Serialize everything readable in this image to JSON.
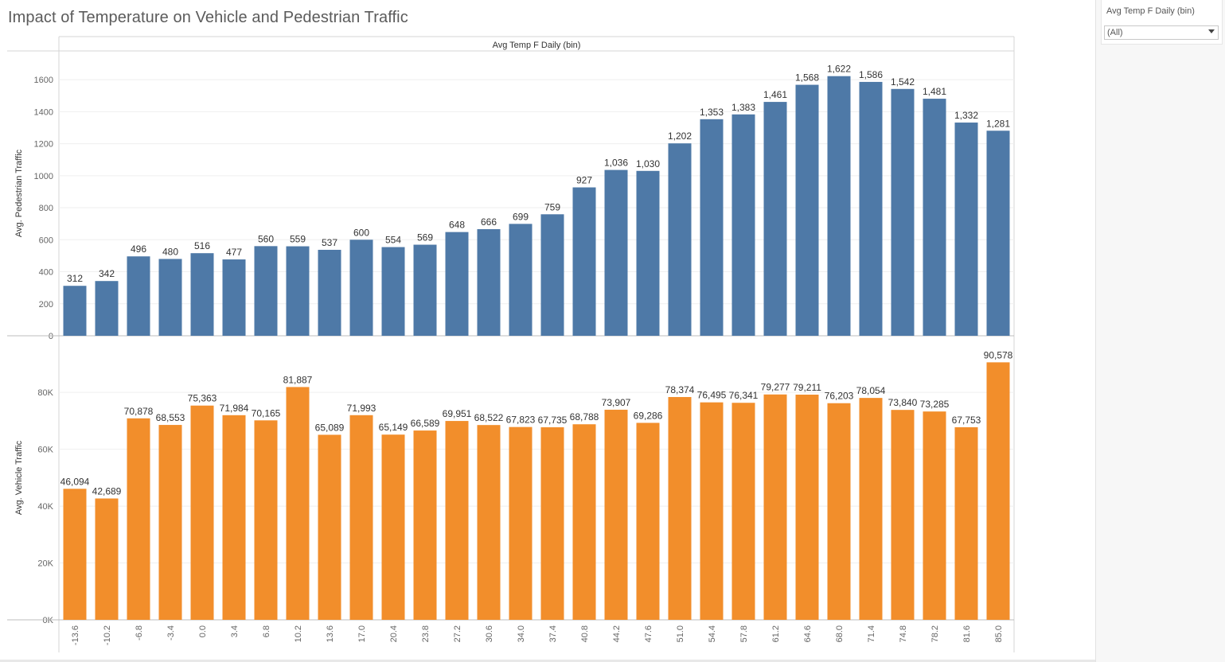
{
  "title": "Impact of Temperature on Vehicle and Pedestrian Traffic",
  "filter": {
    "title": "Avg Temp F Daily (bin)",
    "selected": "(All)",
    "icon": "chevron-down-icon"
  },
  "chart_data": {
    "type": "bar",
    "header": "Avg Temp F Daily (bin)",
    "categories": [
      "-13.6",
      "-10.2",
      "-6.8",
      "-3.4",
      "0.0",
      "3.4",
      "6.8",
      "10.2",
      "13.6",
      "17.0",
      "20.4",
      "23.8",
      "27.2",
      "30.6",
      "34.0",
      "37.4",
      "40.8",
      "44.2",
      "47.6",
      "51.0",
      "54.4",
      "57.8",
      "61.2",
      "64.6",
      "68.0",
      "71.4",
      "74.8",
      "78.2",
      "81.6",
      "85.0"
    ],
    "panels": [
      {
        "name": "pedestrian",
        "ylabel": "Avg. Pedestrian Traffic",
        "color": "#4e79a7",
        "ylim": [
          0,
          1700
        ],
        "ticks": [
          0,
          200,
          400,
          600,
          800,
          1000,
          1200,
          1400,
          1600
        ],
        "tick_labels": [
          "0",
          "200",
          "400",
          "600",
          "800",
          "1000",
          "1200",
          "1400",
          "1600"
        ],
        "values": [
          312,
          342,
          496,
          480,
          516,
          477,
          560,
          559,
          537,
          600,
          554,
          569,
          648,
          666,
          699,
          759,
          927,
          1036,
          1030,
          1202,
          1353,
          1383,
          1461,
          1568,
          1622,
          1586,
          1542,
          1481,
          1332,
          1281
        ],
        "labels": [
          "312",
          "342",
          "496",
          "480",
          "516",
          "477",
          "560",
          "559",
          "537",
          "600",
          "554",
          "569",
          "648",
          "666",
          "699",
          "759",
          "927",
          "1,036",
          "1,030",
          "1,202",
          "1,353",
          "1,383",
          "1,461",
          "1,568",
          "1,622",
          "1,586",
          "1,542",
          "1,481",
          "1,332",
          "1,281"
        ]
      },
      {
        "name": "vehicle",
        "ylabel": "Avg. Vehicle Traffic",
        "color": "#f28e2b",
        "ylim": [
          0,
          96000
        ],
        "ticks": [
          0,
          20000,
          40000,
          60000,
          80000
        ],
        "tick_labels": [
          "0K",
          "20K",
          "40K",
          "60K",
          "80K"
        ],
        "values": [
          46094,
          42689,
          70878,
          68553,
          75363,
          71984,
          70165,
          81887,
          65089,
          71993,
          65149,
          66589,
          69951,
          68522,
          67823,
          67735,
          68788,
          73907,
          69286,
          78374,
          76495,
          76341,
          79277,
          79211,
          76203,
          78054,
          73840,
          73285,
          67753,
          90578
        ],
        "labels": [
          "46,094",
          "42,689",
          "70,878",
          "68,553",
          "75,363",
          "71,984",
          "70,165",
          "81,887",
          "65,089",
          "71,993",
          "65,149",
          "66,589",
          "69,951",
          "68,522",
          "67,823",
          "67,735",
          "68,788",
          "73,907",
          "69,286",
          "78,374",
          "76,495",
          "76,341",
          "79,277",
          "79,211",
          "76,203",
          "78,054",
          "73,840",
          "73,285",
          "67,753",
          "90,578"
        ]
      }
    ],
    "grid": true,
    "legend": "none"
  }
}
